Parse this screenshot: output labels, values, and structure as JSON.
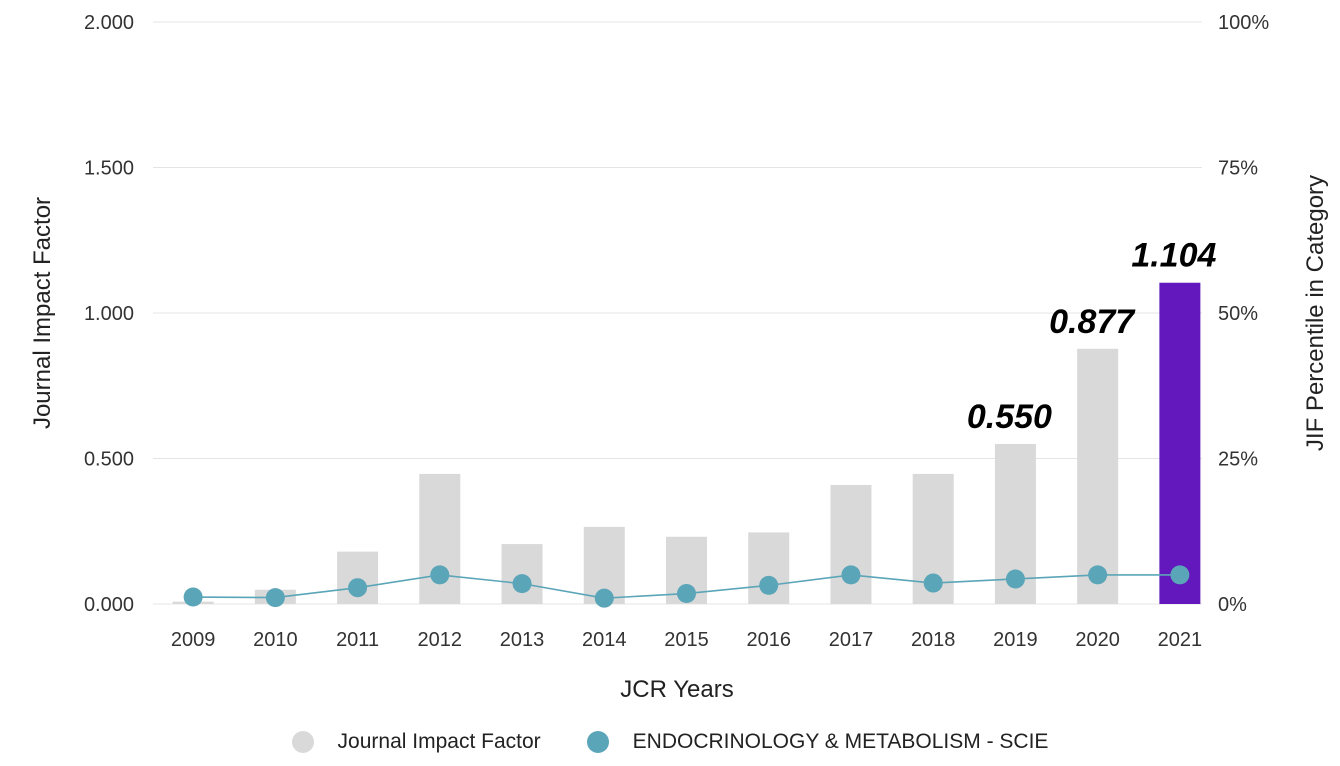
{
  "colors": {
    "bar": "#d9d9d9",
    "bar_highlight": "#6318bd",
    "line": "#5aa5b8",
    "grid": "#e4e4e4"
  },
  "chart_data": {
    "type": "bar",
    "xlabel": "JCR Years",
    "ylabel": "Journal Impact Factor",
    "y2label": "JIF Percentile in Category",
    "ylim": [
      0,
      2
    ],
    "y2lim": [
      0,
      100
    ],
    "yticks": [
      "0.000",
      "0.500",
      "1.000",
      "1.500",
      "2.000"
    ],
    "y2ticks": [
      "0%",
      "25%",
      "50%",
      "75%",
      "100%"
    ],
    "categories": [
      "2009",
      "2010",
      "2011",
      "2012",
      "2013",
      "2014",
      "2015",
      "2016",
      "2017",
      "2018",
      "2019",
      "2020",
      "2021"
    ],
    "series": [
      {
        "name": "Journal Impact Factor",
        "type": "bar",
        "values": [
          0.008,
          0.049,
          0.18,
          0.447,
          0.206,
          0.265,
          0.231,
          0.246,
          0.409,
          0.447,
          0.55,
          0.877,
          1.104
        ]
      },
      {
        "name": "ENDOCRINOLOGY & METABOLISM - SCIE",
        "type": "line",
        "axis": "right",
        "values": [
          1.2,
          1.1,
          2.8,
          5.0,
          3.5,
          1.0,
          1.8,
          3.2,
          5.0,
          3.6,
          4.3,
          5.0,
          5.0
        ]
      }
    ],
    "annotations": [
      {
        "category": "2019",
        "text": "0.550"
      },
      {
        "category": "2020",
        "text": "0.877"
      },
      {
        "category": "2021",
        "text": "1.104"
      }
    ],
    "highlight_category": "2021",
    "grid": true,
    "legend_position": "bottom"
  }
}
